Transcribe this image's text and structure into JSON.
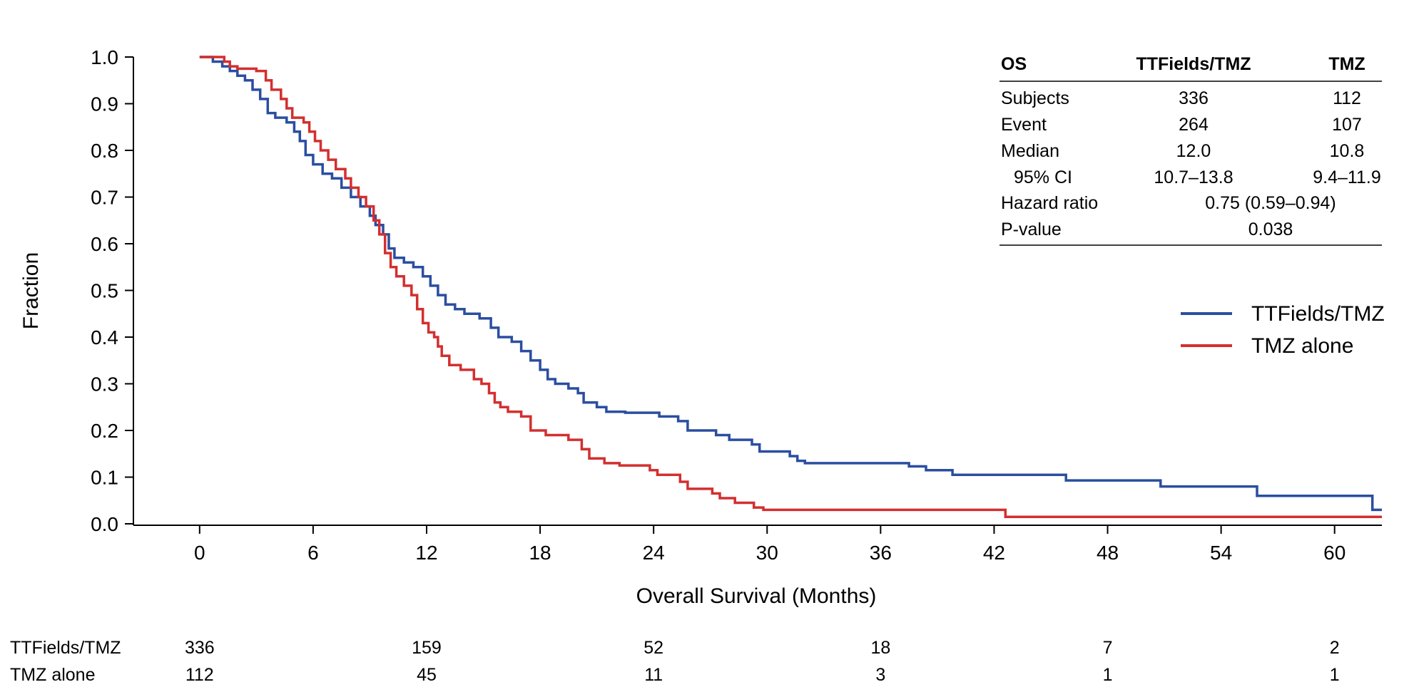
{
  "chart_data": {
    "type": "line",
    "title": "",
    "xlabel": "Overall Survival (Months)",
    "ylabel": "Fraction",
    "xlim": [
      -3.5,
      62.5
    ],
    "ylim": [
      0,
      1.0
    ],
    "x_ticks": [
      0,
      6,
      12,
      18,
      24,
      30,
      36,
      42,
      48,
      54,
      60
    ],
    "y_ticks": [
      "0.0",
      "0.1",
      "0.2",
      "0.3",
      "0.4",
      "0.5",
      "0.6",
      "0.7",
      "0.8",
      "0.9",
      "1.0"
    ],
    "grid": false,
    "legend_position": "right",
    "series": [
      {
        "name": "TTFields/TMZ",
        "color": "#2a4ea0",
        "points": [
          [
            0,
            1.0
          ],
          [
            0.7,
            0.99
          ],
          [
            1.2,
            0.98
          ],
          [
            1.6,
            0.97
          ],
          [
            2.0,
            0.96
          ],
          [
            2.4,
            0.95
          ],
          [
            2.8,
            0.93
          ],
          [
            3.2,
            0.91
          ],
          [
            3.6,
            0.88
          ],
          [
            4.0,
            0.87
          ],
          [
            4.6,
            0.86
          ],
          [
            5.0,
            0.84
          ],
          [
            5.3,
            0.82
          ],
          [
            5.6,
            0.79
          ],
          [
            6.0,
            0.77
          ],
          [
            6.5,
            0.75
          ],
          [
            7.0,
            0.74
          ],
          [
            7.5,
            0.72
          ],
          [
            8.0,
            0.7
          ],
          [
            8.5,
            0.68
          ],
          [
            9.0,
            0.66
          ],
          [
            9.3,
            0.64
          ],
          [
            9.7,
            0.62
          ],
          [
            10.0,
            0.59
          ],
          [
            10.3,
            0.57
          ],
          [
            10.8,
            0.56
          ],
          [
            11.3,
            0.55
          ],
          [
            11.8,
            0.53
          ],
          [
            12.2,
            0.51
          ],
          [
            12.6,
            0.49
          ],
          [
            13.0,
            0.47
          ],
          [
            13.5,
            0.46
          ],
          [
            14.0,
            0.45
          ],
          [
            14.8,
            0.44
          ],
          [
            15.4,
            0.42
          ],
          [
            15.8,
            0.4
          ],
          [
            16.5,
            0.39
          ],
          [
            17.0,
            0.37
          ],
          [
            17.5,
            0.35
          ],
          [
            18.0,
            0.33
          ],
          [
            18.4,
            0.31
          ],
          [
            18.8,
            0.3
          ],
          [
            19.5,
            0.29
          ],
          [
            20.0,
            0.28
          ],
          [
            20.3,
            0.26
          ],
          [
            21.0,
            0.25
          ],
          [
            21.5,
            0.24
          ],
          [
            22.5,
            0.238
          ],
          [
            24.3,
            0.23
          ],
          [
            25.3,
            0.22
          ],
          [
            25.8,
            0.2
          ],
          [
            27.3,
            0.19
          ],
          [
            28.0,
            0.18
          ],
          [
            29.2,
            0.17
          ],
          [
            29.6,
            0.155
          ],
          [
            31.2,
            0.145
          ],
          [
            31.6,
            0.135
          ],
          [
            32.0,
            0.13
          ],
          [
            37.5,
            0.123
          ],
          [
            38.4,
            0.115
          ],
          [
            39.8,
            0.105
          ],
          [
            45.8,
            0.093
          ],
          [
            50.8,
            0.08
          ],
          [
            55.9,
            0.06
          ],
          [
            62.0,
            0.03
          ],
          [
            62.5,
            0.03
          ]
        ]
      },
      {
        "name": "TMZ alone",
        "color": "#d32f2f",
        "points": [
          [
            0,
            1.0
          ],
          [
            1.3,
            0.99
          ],
          [
            1.6,
            0.98
          ],
          [
            2.0,
            0.975
          ],
          [
            3.0,
            0.97
          ],
          [
            3.5,
            0.95
          ],
          [
            3.8,
            0.93
          ],
          [
            4.3,
            0.91
          ],
          [
            4.6,
            0.89
          ],
          [
            4.9,
            0.87
          ],
          [
            5.5,
            0.86
          ],
          [
            5.8,
            0.84
          ],
          [
            6.1,
            0.82
          ],
          [
            6.4,
            0.8
          ],
          [
            6.8,
            0.78
          ],
          [
            7.2,
            0.76
          ],
          [
            7.7,
            0.74
          ],
          [
            8.0,
            0.72
          ],
          [
            8.4,
            0.7
          ],
          [
            8.8,
            0.68
          ],
          [
            9.2,
            0.65
          ],
          [
            9.5,
            0.62
          ],
          [
            9.8,
            0.58
          ],
          [
            10.1,
            0.55
          ],
          [
            10.4,
            0.53
          ],
          [
            10.8,
            0.51
          ],
          [
            11.2,
            0.49
          ],
          [
            11.5,
            0.46
          ],
          [
            11.8,
            0.43
          ],
          [
            12.1,
            0.41
          ],
          [
            12.4,
            0.4
          ],
          [
            12.6,
            0.38
          ],
          [
            12.8,
            0.36
          ],
          [
            13.2,
            0.34
          ],
          [
            13.8,
            0.33
          ],
          [
            14.5,
            0.31
          ],
          [
            14.9,
            0.3
          ],
          [
            15.3,
            0.28
          ],
          [
            15.6,
            0.26
          ],
          [
            15.9,
            0.25
          ],
          [
            16.3,
            0.24
          ],
          [
            17.0,
            0.23
          ],
          [
            17.5,
            0.2
          ],
          [
            18.3,
            0.19
          ],
          [
            19.5,
            0.18
          ],
          [
            20.2,
            0.16
          ],
          [
            20.6,
            0.14
          ],
          [
            21.4,
            0.13
          ],
          [
            22.2,
            0.125
          ],
          [
            23.8,
            0.115
          ],
          [
            24.2,
            0.105
          ],
          [
            25.4,
            0.09
          ],
          [
            25.8,
            0.075
          ],
          [
            27.1,
            0.065
          ],
          [
            27.5,
            0.055
          ],
          [
            28.3,
            0.045
          ],
          [
            29.3,
            0.035
          ],
          [
            29.8,
            0.03
          ],
          [
            42.6,
            0.015
          ],
          [
            62.5,
            0.015
          ]
        ]
      }
    ],
    "stats_table": {
      "headers": [
        "OS",
        "TTFields/TMZ",
        "TMZ"
      ],
      "rows": [
        {
          "label": "Subjects",
          "a": "336",
          "b": "112"
        },
        {
          "label": "Event",
          "a": "264",
          "b": "107"
        },
        {
          "label": "Median",
          "a": "12.0",
          "b": "10.8"
        },
        {
          "label": "95% CI",
          "a": "10.7–13.8",
          "b": "9.4–11.9"
        }
      ],
      "hazard_label": "Hazard ratio",
      "hazard_value": "0.75 (0.59–0.94)",
      "p_label": "P-value",
      "p_value": "0.038"
    },
    "at_risk": {
      "times": [
        0,
        12,
        24,
        36,
        48,
        60
      ],
      "rows": [
        {
          "label": "TTFields/TMZ",
          "values": [
            "336",
            "159",
            "52",
            "18",
            "7",
            "2"
          ]
        },
        {
          "label": "TMZ alone",
          "values": [
            "112",
            "45",
            "11",
            "3",
            "1",
            "1"
          ]
        }
      ]
    }
  }
}
